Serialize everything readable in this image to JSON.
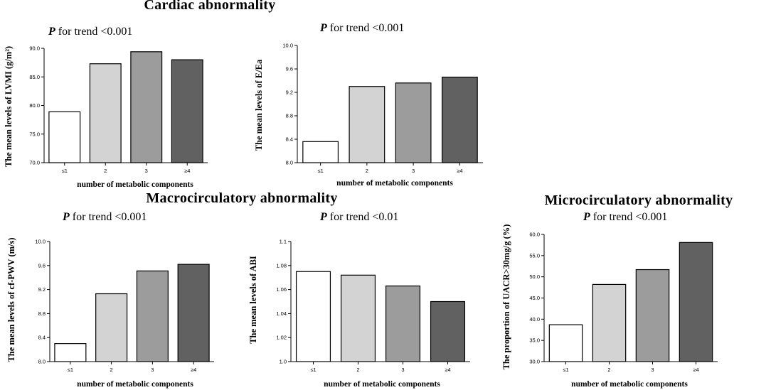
{
  "sections": {
    "cardiac": "Cardiac abnormality",
    "macro": "Macrocirculatory abnormality",
    "micro": "Microcirculatory abnormality"
  },
  "chart_data": [
    {
      "type": "bar",
      "p_italic": "P",
      "p_text": " for trend <0.001",
      "categories": [
        "≤1",
        "2",
        "3",
        "≥4"
      ],
      "values": [
        78.9,
        87.3,
        89.4,
        88.0
      ],
      "colors": [
        "#ffffff",
        "#d3d3d3",
        "#9c9c9c",
        "#616161"
      ],
      "ylabel": "The mean levels of LVMI (g/m²)",
      "xlabel": "number of metabolic components",
      "ylim": [
        70,
        90
      ],
      "yticks": [
        "70.0",
        "75.0",
        "80.0",
        "85.0",
        "90.0"
      ]
    },
    {
      "type": "bar",
      "p_italic": "P",
      "p_text": " for trend <0.001",
      "categories": [
        "≤1",
        "2",
        "3",
        "≥4"
      ],
      "values": [
        8.36,
        9.3,
        9.36,
        9.46
      ],
      "colors": [
        "#ffffff",
        "#d3d3d3",
        "#9c9c9c",
        "#616161"
      ],
      "ylabel": "The mean levels of E/Ea",
      "xlabel": "number of metabolic components",
      "ylim": [
        8.0,
        10.0
      ],
      "yticks": [
        "8.0",
        "8.4",
        "8.8",
        "9.2",
        "9.6",
        "10.0"
      ]
    },
    {
      "type": "bar",
      "p_italic": "P",
      "p_text": " for trend <0.001",
      "categories": [
        "≤1",
        "2",
        "3",
        "≥4"
      ],
      "values": [
        8.3,
        9.13,
        9.51,
        9.62
      ],
      "colors": [
        "#ffffff",
        "#d3d3d3",
        "#9c9c9c",
        "#616161"
      ],
      "ylabel": "The mean levels of cf-PWV (m/s)",
      "xlabel": "number of metabolic components",
      "ylim": [
        8.0,
        10.0
      ],
      "yticks": [
        "8.0",
        "8.4",
        "8.8",
        "9.2",
        "9.6",
        "10.0"
      ]
    },
    {
      "type": "bar",
      "p_italic": "P",
      "p_text": " for trend <0.01",
      "categories": [
        "≤1",
        "2",
        "3",
        "≥4"
      ],
      "values": [
        1.075,
        1.072,
        1.063,
        1.05
      ],
      "colors": [
        "#ffffff",
        "#d3d3d3",
        "#9c9c9c",
        "#616161"
      ],
      "ylabel": "The mean levels of ABI",
      "xlabel": "number of metabolic components",
      "ylim": [
        1.0,
        1.1
      ],
      "yticks": [
        "1.0",
        "1.02",
        "1.04",
        "1.06",
        "1.08",
        "1.1"
      ]
    },
    {
      "type": "bar",
      "p_italic": "P",
      "p_text": " for trend <0.001",
      "categories": [
        "≤1",
        "2",
        "3",
        "≥4"
      ],
      "values": [
        38.7,
        48.2,
        51.7,
        58.1
      ],
      "colors": [
        "#ffffff",
        "#d3d3d3",
        "#9c9c9c",
        "#616161"
      ],
      "ylabel": "The proportion of UACR>30mg/g (%)",
      "xlabel": "number of metabolic components",
      "ylim": [
        30.0,
        60.0
      ],
      "yticks": [
        "30.0",
        "35.0",
        "40.0",
        "45.0",
        "50.0",
        "55.0",
        "60.0"
      ]
    }
  ]
}
